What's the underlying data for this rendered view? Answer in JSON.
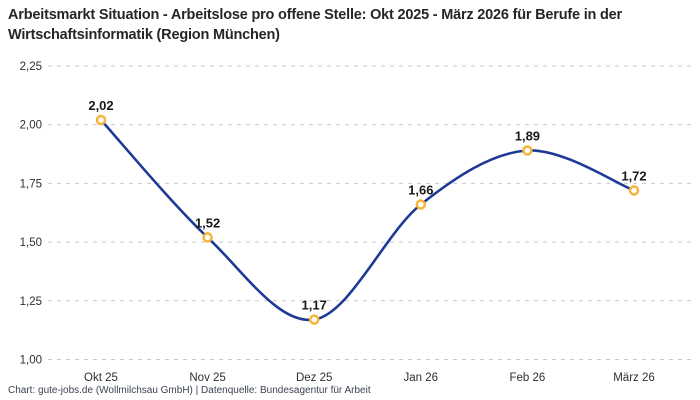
{
  "title": "Arbeitsmarkt Situation - Arbeitslose pro offene Stelle: Okt 2025 - März 2026 für Berufe in der Wirtschaftsinformatik (Region München)",
  "footer": "Chart: gute-jobs.de (Wollmilchsau GmbH) | Datenquelle: Bundesagentur für Arbeit",
  "colors": {
    "line": "#1e3a96",
    "marker_stroke": "#f4b53a",
    "marker_fill": "#ffffff",
    "grid": "#c9c9c9",
    "title_text": "#262626",
    "tick_text": "#2e2e2e",
    "label_text": "#191919",
    "footer_text": "#3b4252",
    "background": "#ffffff"
  },
  "chart_data": {
    "type": "line",
    "title": "Arbeitsmarkt Situation - Arbeitslose pro offene Stelle: Okt 2025 - März 2026 für Berufe in der Wirtschaftsinformatik (Region München)",
    "categories": [
      "Okt 25",
      "Nov 25",
      "Dez 25",
      "Jan 26",
      "Feb 26",
      "März 26"
    ],
    "values": [
      2.02,
      1.52,
      1.17,
      1.66,
      1.89,
      1.72
    ],
    "point_labels": [
      "2,02",
      "1,52",
      "1,17",
      "1,66",
      "1,89",
      "1,72"
    ],
    "xlabel": "",
    "ylabel": "",
    "ylim": [
      1.0,
      2.25
    ],
    "yticks": {
      "values": [
        1.0,
        1.25,
        1.5,
        1.75,
        2.0,
        2.25
      ],
      "labels": [
        "1,00",
        "1,25",
        "1,50",
        "1,75",
        "2,00",
        "2,25"
      ]
    },
    "grid": "horizontal-dashed",
    "legend": "none",
    "curve": "smooth",
    "marker": "hollow-circle"
  }
}
